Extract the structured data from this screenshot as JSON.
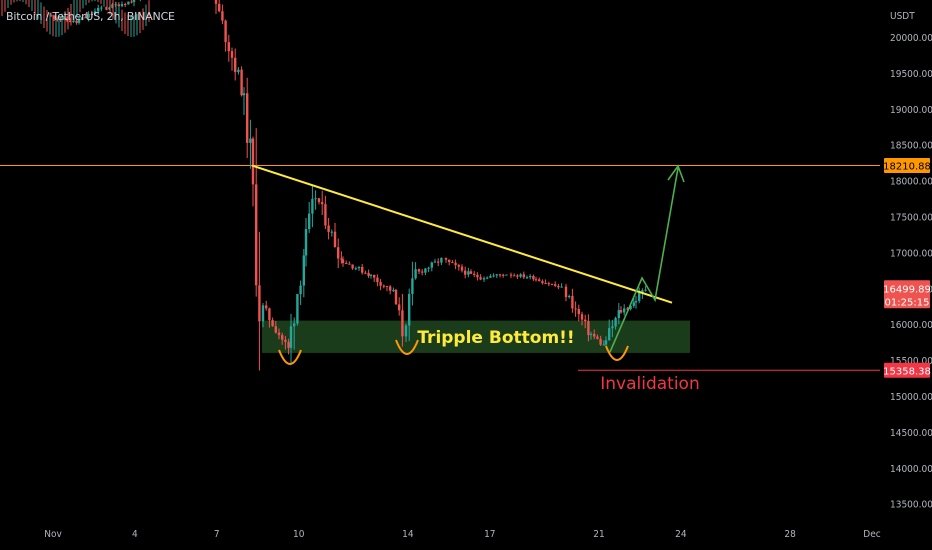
{
  "header": {
    "symbol_title": "Bitcoin / TetherUS, 2h, BINANCE"
  },
  "colors": {
    "background": "#000000",
    "up_candle": "#26a69a",
    "down_candle": "#ef5350",
    "resistance_line": "#ff9800",
    "trend_line": "#ffeb3b",
    "zone_fill": "#1e4620",
    "arrow": "#4caf50",
    "invalidation": "#f23645",
    "last_price_tag": "#ef5350",
    "axis_text": "#b2b5be"
  },
  "chart_data": {
    "type": "candlestick",
    "title": "Bitcoin / TetherUS, 2h, BINANCE",
    "y_axis_unit": "USDT",
    "y_ticks": [
      13500,
      14000,
      14500,
      15000,
      15500,
      16000,
      16500,
      17000,
      17500,
      18000,
      18500,
      19000,
      19500,
      20000
    ],
    "y_tick_labels": [
      "13500.00",
      "14000.00",
      "14500.00",
      "15000.00",
      "15500.00",
      "16000.00",
      "16500.00",
      "17000.00",
      "17500.00",
      "18000.00",
      "18500.00",
      "19000.00",
      "19500.00",
      "20000.00"
    ],
    "ylim": [
      13000,
      20500
    ],
    "x_ticks": [
      "Nov",
      "4",
      "7",
      "10",
      "14",
      "17",
      "21",
      "24",
      "28",
      "Dec"
    ],
    "grid": false,
    "price_tags": [
      {
        "name": "resistance",
        "value": 18210.88,
        "label": "18210.88",
        "bg": "#ff9800",
        "fg": "#000000"
      },
      {
        "name": "last-price",
        "value": 16499.89,
        "label": "16499.89",
        "sub": "01:25:15",
        "bg": "#ef5350",
        "fg": "#ffffff"
      },
      {
        "name": "invalidation",
        "value": 15358.38,
        "label": "15358.38",
        "bg": "#f23645",
        "fg": "#ffffff"
      }
    ],
    "annotations": {
      "pattern_label": "Tripple Bottom!!",
      "invalidation_label": "Invalidation",
      "support_zone": [
        15600,
        16050
      ],
      "trend_line": {
        "from": [
          "Nov 8",
          18200
        ],
        "to": [
          "Nov 25",
          16400
        ]
      },
      "projected_target": 18210.88
    },
    "price_path": [
      {
        "date": "Nov 1",
        "price": 20300
      },
      {
        "date": "Nov 2",
        "price": 20200
      },
      {
        "date": "Nov 3",
        "price": 20400
      },
      {
        "date": "Nov 4",
        "price": 20500
      },
      {
        "date": "Nov 5",
        "price": 21200
      },
      {
        "date": "Nov 6",
        "price": 20900
      },
      {
        "date": "Nov 7",
        "price": 20600
      },
      {
        "date": "Nov 8",
        "price": 19300
      },
      {
        "date": "Nov 8 pm",
        "price": 18400
      },
      {
        "date": "Nov 9",
        "price": 16300
      },
      {
        "date": "Nov 9 pm",
        "price": 15650
      },
      {
        "date": "Nov 10",
        "price": 17000
      },
      {
        "date": "Nov 10 pm",
        "price": 17800
      },
      {
        "date": "Nov 11",
        "price": 16900
      },
      {
        "date": "Nov 12",
        "price": 16700
      },
      {
        "date": "Nov 13",
        "price": 16450
      },
      {
        "date": "Nov 14",
        "price": 15900
      },
      {
        "date": "Nov 14 pm",
        "price": 16700
      },
      {
        "date": "Nov 15",
        "price": 16900
      },
      {
        "date": "Nov 16",
        "price": 16700
      },
      {
        "date": "Nov 17",
        "price": 16650
      },
      {
        "date": "Nov 18",
        "price": 16700
      },
      {
        "date": "Nov 19",
        "price": 16650
      },
      {
        "date": "Nov 20",
        "price": 16500
      },
      {
        "date": "Nov 21",
        "price": 15900
      },
      {
        "date": "Nov 21 pm",
        "price": 15700
      },
      {
        "date": "Nov 22",
        "price": 16150
      },
      {
        "date": "Nov 22 pm",
        "price": 16300
      },
      {
        "date": "Nov 23",
        "price": 16499.89
      }
    ]
  }
}
